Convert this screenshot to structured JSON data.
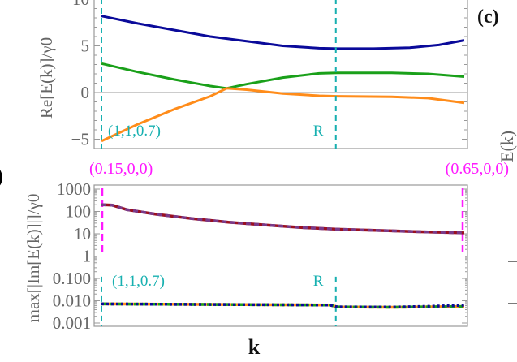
{
  "panel_labels": {
    "left_partial": ")",
    "right_partial": "(c)",
    "right_axis_partial": "E(k)"
  },
  "chart_data": [
    {
      "type": "line",
      "ylabel": "Re[E(k)]/γ0",
      "xlabel": "",
      "ylim": [
        -6,
        10.4
      ],
      "yticks": [
        -5,
        0,
        5,
        10
      ],
      "ytick_labels": [
        "−5",
        "0",
        "5",
        "10"
      ],
      "x_range": [
        0,
        1
      ],
      "vlines": [
        {
          "x": 0,
          "label": "(1,1,0.7)",
          "color": "#17b0b0",
          "style": "dashed"
        },
        {
          "x": 0.646,
          "label": "R",
          "color": "#17b0b0",
          "style": "dashed"
        }
      ],
      "hline": 0,
      "series": [
        {
          "color": "#0a0a9a",
          "x": [
            0,
            0.1,
            0.2,
            0.3,
            0.4,
            0.5,
            0.6,
            0.65,
            0.75,
            0.85,
            0.93,
            1
          ],
          "y": [
            8.2,
            7.4,
            6.7,
            6.0,
            5.5,
            5.0,
            4.75,
            4.7,
            4.7,
            4.8,
            5.1,
            5.6
          ]
        },
        {
          "color": "#1aa01a",
          "x": [
            0,
            0.1,
            0.2,
            0.3,
            0.345,
            0.4,
            0.5,
            0.6,
            0.65,
            0.8,
            0.9,
            1
          ],
          "y": [
            3.1,
            2.2,
            1.4,
            0.7,
            0.45,
            0.9,
            1.6,
            2.05,
            2.1,
            2.1,
            2.0,
            1.7
          ]
        },
        {
          "color": "#ff8c1a",
          "x": [
            0,
            0.1,
            0.2,
            0.3,
            0.345,
            0.4,
            0.5,
            0.6,
            0.65,
            0.8,
            0.9,
            1
          ],
          "y": [
            -5.2,
            -3.4,
            -1.8,
            -0.4,
            0.45,
            0.3,
            -0.1,
            -0.35,
            -0.4,
            -0.45,
            -0.6,
            -1.1
          ]
        }
      ]
    },
    {
      "type": "line",
      "ylabel": "max[|Im[E(k)]|]/γ0",
      "xlabel": "k",
      "yscale": "log",
      "ylim": [
        0.00085,
        1300
      ],
      "yticks": [
        1000,
        100,
        10,
        1,
        0.1,
        0.01,
        0.001
      ],
      "ytick_labels": [
        "1000",
        "100",
        "10",
        "1",
        "0.100",
        "0.010",
        "0.001"
      ],
      "x_range": [
        0,
        1
      ],
      "top_labels": [
        {
          "x": 0,
          "label": "(0.15,0,0)",
          "color": "#ff1aff"
        },
        {
          "x": 1,
          "label": "(0.65,0,0)",
          "color": "#ff1aff"
        }
      ],
      "vlines": [
        {
          "x": 0,
          "label": "(1,1,0.7)",
          "color": "#17b0b0",
          "style": "dashed"
        },
        {
          "x": 0.646,
          "label": "R",
          "color": "#17b0b0",
          "style": "dashed"
        }
      ],
      "series": [
        {
          "color": "#9a1020",
          "style": "solid",
          "x": [
            0,
            0.03,
            0.07,
            0.15,
            0.25,
            0.35,
            0.45,
            0.55,
            0.65,
            0.8,
            0.9,
            1
          ],
          "y": [
            200,
            190,
            120,
            75,
            48,
            33,
            25,
            19,
            16,
            13.5,
            12,
            11
          ]
        },
        {
          "color": "#7a3a8a",
          "style": "dashed",
          "x": [
            0,
            0.03,
            0.07,
            0.15,
            0.25,
            0.35,
            0.45,
            0.55,
            0.65,
            0.8,
            0.9,
            1
          ],
          "y": [
            200,
            190,
            120,
            75,
            48,
            33,
            25,
            19,
            16,
            13.5,
            12,
            11
          ]
        },
        {
          "color": "#ff8c1a",
          "style": "solid",
          "x": [
            0,
            0.5,
            0.63,
            0.65,
            0.8,
            1
          ],
          "y": [
            0.0072,
            0.0066,
            0.0064,
            0.0053,
            0.0051,
            0.0055
          ]
        },
        {
          "color": "#1aa01a",
          "style": "dashed",
          "x": [
            0,
            0.5,
            0.63,
            0.65,
            0.8,
            1
          ],
          "y": [
            0.0072,
            0.0066,
            0.0064,
            0.0053,
            0.0051,
            0.0055
          ]
        },
        {
          "color": "#0a0a9a",
          "style": "dotted",
          "x": [
            0,
            0.5,
            0.63,
            0.65,
            0.8,
            0.9,
            1
          ],
          "y": [
            0.0072,
            0.0066,
            0.0064,
            0.0053,
            0.0052,
            0.0056,
            0.0063
          ]
        }
      ]
    }
  ]
}
